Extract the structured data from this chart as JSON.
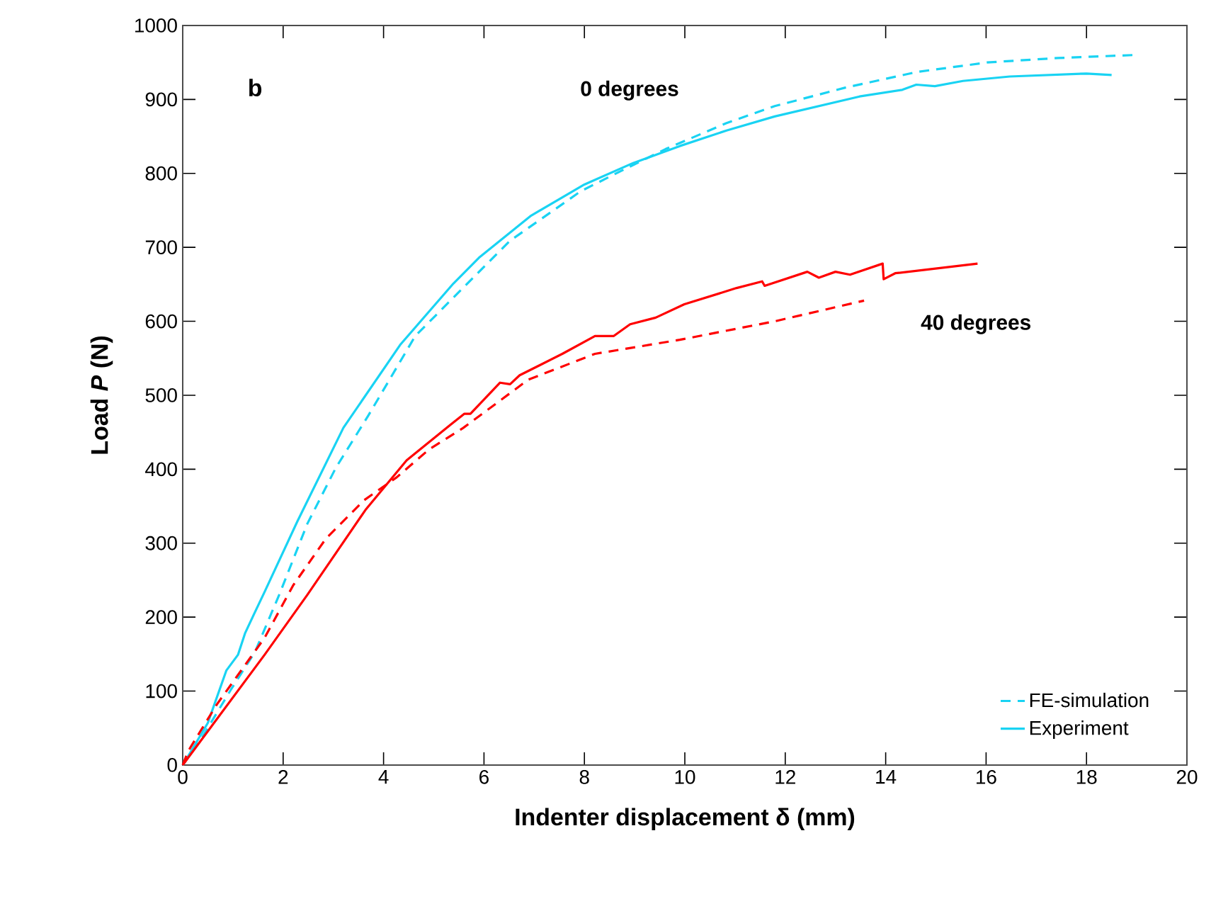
{
  "chart_data": {
    "type": "line",
    "xlabel": "Indenter displacement δ  (mm)",
    "ylabel": "Load *P*  (N)",
    "xlim": [
      0,
      20
    ],
    "ylim": [
      0,
      1000
    ],
    "xticks": [
      0,
      2,
      4,
      6,
      8,
      10,
      12,
      14,
      16,
      18,
      20
    ],
    "yticks": [
      0,
      100,
      200,
      300,
      400,
      500,
      600,
      700,
      800,
      900,
      1000
    ],
    "grid": false,
    "legend": "bottom right",
    "marker": "none",
    "annotations": [
      "b",
      "0 degrees",
      "40 degrees"
    ],
    "series": [
      {
        "name": "FE-simulation",
        "color": "#19d3f3",
        "line_style": "dashed",
        "x": [
          0,
          0.39,
          0.96,
          1.44,
          1.92,
          2.48,
          3.05,
          3.7,
          4.63,
          5.39,
          6.52,
          7.93,
          8.78,
          9.62,
          10.83,
          11.79,
          13.2,
          14.61,
          16.02,
          17.43,
          18.93
        ],
        "values": [
          0,
          38,
          102,
          153,
          230,
          326,
          402,
          473,
          580,
          632,
          709,
          776,
          805,
          833,
          868,
          891,
          916,
          937,
          950,
          956,
          960
        ]
      },
      {
        "name": "Experiment",
        "color": "#19d3f3",
        "line_style": "solid",
        "x": [
          0,
          0.17,
          0.5,
          0.87,
          1.1,
          1.24,
          1.44,
          1.63,
          2.28,
          3.2,
          4.34,
          5.39,
          5.9,
          6.94,
          8.0,
          8.97,
          9.9,
          10.83,
          11.79,
          13.48,
          14.33,
          14.61,
          14.98,
          15.54,
          16.47,
          18.0,
          18.5
        ],
        "values": [
          0,
          19,
          57,
          128,
          149,
          178,
          207,
          234,
          329,
          456,
          569,
          651,
          686,
          743,
          785,
          814,
          837,
          858,
          877,
          904,
          913,
          920,
          918,
          925,
          931,
          935,
          933
        ]
      },
      {
        "color": "#ff0000",
        "line_style": "dashed",
        "x": [
          0,
          0.11,
          0.68,
          1.63,
          2.2,
          2.85,
          3.61,
          4.26,
          4.91,
          5.59,
          6.88,
          8.21,
          9.9,
          11.79,
          13.57
        ],
        "values": [
          0,
          19,
          82,
          172,
          243,
          306,
          358,
          389,
          427,
          456,
          521,
          556,
          575,
          600,
          628
        ]
      },
      {
        "color": "#ff0000",
        "line_style": "solid",
        "x": [
          0,
          1.63,
          2.48,
          3.64,
          4.46,
          5.33,
          5.61,
          5.73,
          6.32,
          6.52,
          6.71,
          7.56,
          8.21,
          8.58,
          8.91,
          9.42,
          9.99,
          11.03,
          11.54,
          11.59,
          12.44,
          12.67,
          13.0,
          13.29,
          13.94,
          13.96,
          14.19,
          15.83
        ],
        "values": [
          0,
          149,
          230,
          345,
          412,
          460,
          475,
          475,
          517,
          515,
          527,
          556,
          580,
          580,
          596,
          605,
          623,
          645,
          654,
          648,
          667,
          659,
          667,
          663,
          678,
          657,
          665,
          678
        ]
      }
    ]
  }
}
